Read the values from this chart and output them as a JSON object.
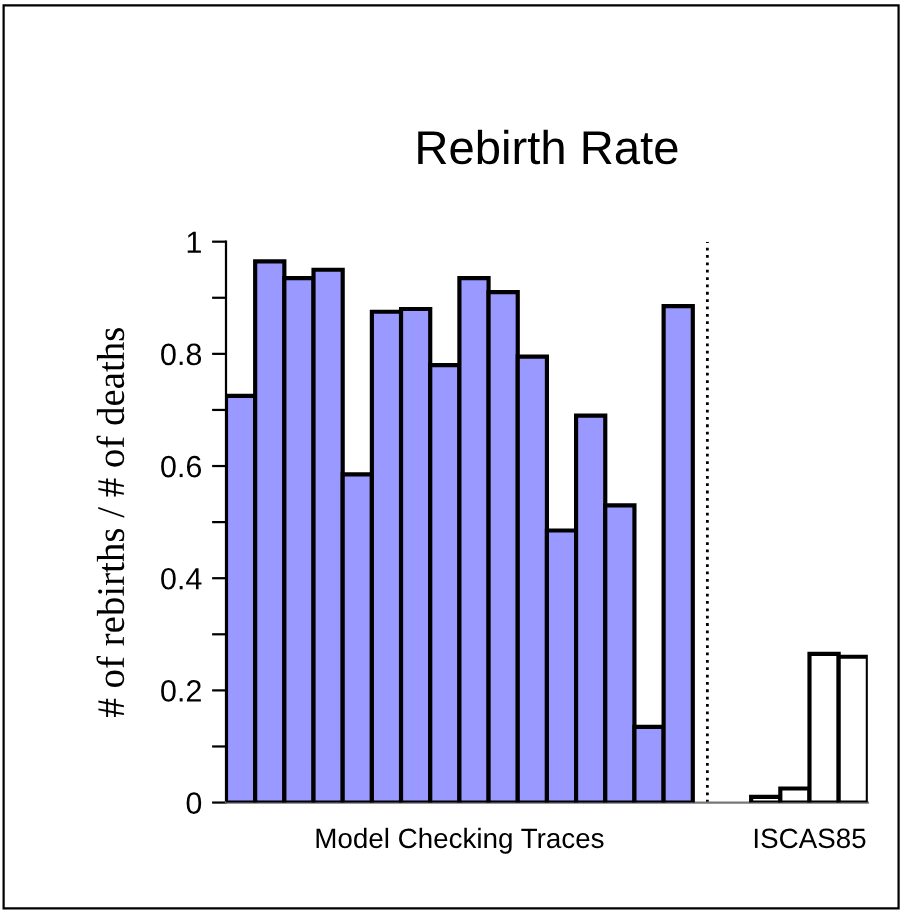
{
  "chart_data": {
    "type": "bar",
    "title": "Rebirth Rate",
    "ylabel": "# of rebirths / # of deaths",
    "categories": [
      null,
      null,
      null,
      null,
      null,
      null,
      null,
      null,
      null,
      null,
      null,
      null,
      null,
      null,
      null,
      null,
      null,
      null,
      null,
      null,
      null,
      null
    ],
    "series": [
      {
        "color": "#9999ff",
        "values": [
          0.725,
          0.965,
          0.935,
          0.95,
          0.585,
          0.875,
          0.88,
          0.78,
          0.935,
          0.91,
          0.795,
          0.485,
          0.69,
          0.53,
          0.135,
          0.885,
          null,
          null,
          null,
          null,
          null,
          null
        ]
      },
      {
        "color": "#ffffff",
        "values": [
          null,
          null,
          null,
          null,
          null,
          null,
          null,
          null,
          null,
          null,
          null,
          null,
          null,
          null,
          null,
          null,
          null,
          null,
          0.01,
          0.025,
          0.265,
          0.26
        ]
      }
    ],
    "ylim": [
      0,
      1
    ],
    "yticks": [
      0,
      {
        "value": 0.1,
        "label": null
      },
      0.2,
      {
        "value": 0.3,
        "label": null
      },
      0.4,
      {
        "value": 0.5,
        "label": null
      },
      0.6,
      {
        "value": 0.7,
        "label": null
      },
      0.8,
      {
        "value": 0.9,
        "label": null
      },
      1
    ],
    "annotations": [
      "Model Checking Traces",
      "ISCAS85"
    ],
    "grid": false,
    "legend": false
  }
}
